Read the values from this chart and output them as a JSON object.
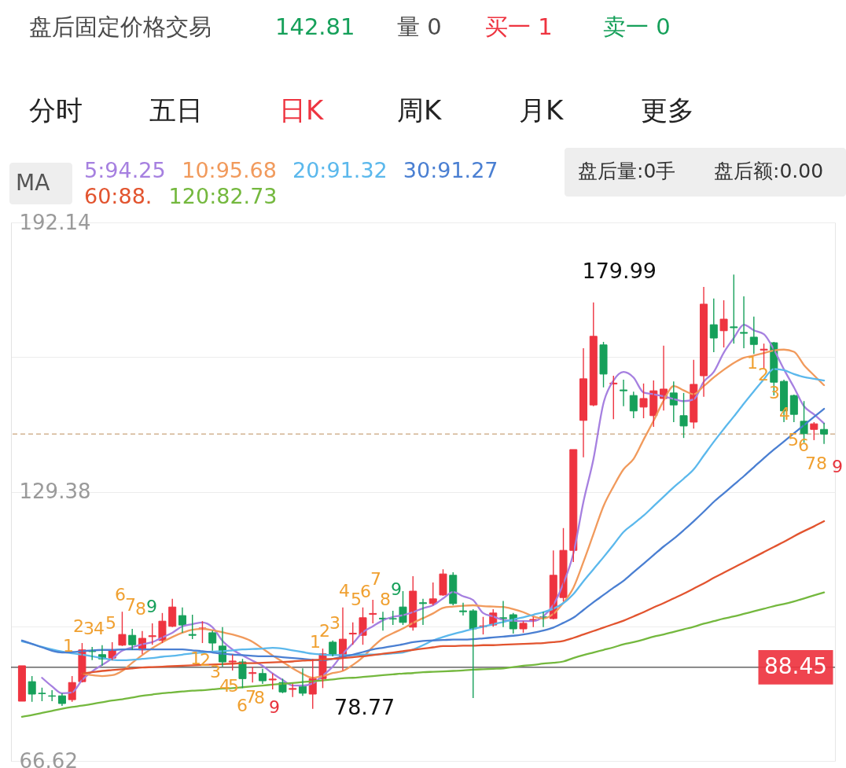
{
  "chart_data": {
    "type": "candlestick",
    "annotations": [
      "盘后固定价格交易",
      "142.81",
      "量 0",
      "买一 1",
      "卖一 0",
      "分时",
      "五日",
      "日K",
      "周K",
      "月K",
      "更多",
      "MA",
      "盘后量:0手",
      "盘后额:0.00",
      "179.99",
      "78.77",
      "1",
      "2",
      "3",
      "4",
      "5",
      "6",
      "7",
      "8",
      "9",
      "1",
      "2",
      "3",
      "4",
      "5",
      "6",
      "7",
      "8",
      "9",
      "1",
      "2",
      "3",
      "4",
      "5",
      "6",
      "7",
      "8",
      "9",
      "1",
      "2",
      "3",
      "4",
      "5",
      "6",
      "7",
      "8",
      "9"
    ],
    "categories": [
      null,
      null,
      null,
      null,
      null,
      null,
      null,
      null,
      null,
      null,
      null,
      null,
      null,
      null,
      null,
      null,
      null,
      null,
      null,
      null,
      null,
      null,
      null,
      null,
      null,
      null,
      null,
      null,
      null,
      null,
      null,
      null,
      null,
      null,
      null,
      null,
      null,
      null,
      null,
      null,
      null,
      null,
      null,
      null,
      null,
      null,
      null,
      null,
      null,
      null,
      null,
      null,
      null,
      null,
      null,
      null,
      null,
      null,
      null,
      null,
      null,
      null,
      null,
      null,
      null,
      null,
      null,
      null,
      null,
      null,
      null,
      null,
      null,
      null,
      null,
      null,
      null,
      null,
      null,
      null,
      null
    ],
    "ohlc": [
      [
        80.55,
        88.8,
        80.55,
        88.8
      ],
      [
        85.1,
        86.4,
        80.4,
        82.2
      ],
      [
        82.4,
        83.7,
        80.55,
        82.3
      ],
      [
        81.8,
        83.1,
        80.55,
        81.7
      ],
      [
        81.8,
        82.4,
        79.45,
        80.0
      ],
      [
        80.9,
        86.4,
        80.4,
        84.9
      ],
      [
        85.1,
        94.1,
        84.9,
        92.5
      ],
      [
        92.3,
        93.2,
        90.1,
        92.1
      ],
      [
        91.4,
        93.6,
        88.8,
        90.4
      ],
      [
        90.6,
        94.3,
        90.1,
        92.5
      ],
      [
        93.6,
        101.4,
        93.4,
        96.1
      ],
      [
        95.9,
        97.4,
        92.5,
        93.7
      ],
      [
        92.5,
        96.9,
        91.5,
        95.2
      ],
      [
        95.6,
        98.7,
        93.7,
        95.8
      ],
      [
        94.7,
        101.1,
        94.1,
        99.2
      ],
      [
        98.0,
        104.4,
        97.8,
        102.5
      ],
      [
        100.5,
        102.4,
        96.5,
        98.3
      ],
      [
        96.1,
        100.7,
        95.0,
        95.9
      ],
      [
        97.4,
        99.2,
        94.1,
        97.6
      ],
      [
        96.5,
        97.0,
        92.3,
        94.1
      ],
      [
        93.4,
        97.8,
        88.6,
        89.7
      ],
      [
        89.7,
        91.4,
        87.7,
        89.9
      ],
      [
        89.7,
        90.4,
        83.6,
        85.8
      ],
      [
        87.0,
        88.6,
        84.9,
        87.2
      ],
      [
        87.0,
        88.1,
        84.6,
        85.3
      ],
      [
        85.5,
        87.0,
        83.3,
        85.7
      ],
      [
        84.9,
        85.8,
        82.4,
        82.7
      ],
      [
        83.3,
        84.6,
        81.5,
        83.5
      ],
      [
        84.0,
        88.2,
        81.8,
        82.4
      ],
      [
        82.2,
        90.4,
        78.77,
        85.8
      ],
      [
        85.8,
        92.8,
        83.6,
        91.6
      ],
      [
        94.3,
        94.7,
        91.0,
        91.4
      ],
      [
        91.0,
        102.4,
        87.7,
        95.0
      ],
      [
        96.2,
        98.9,
        93.7,
        96.4
      ],
      [
        95.9,
        102.4,
        93.7,
        100.0
      ],
      [
        100.8,
        104.2,
        98.7,
        101.0
      ],
      [
        99.9,
        101.4,
        97.0,
        99.7
      ],
      [
        99.8,
        101.6,
        98.3,
        99.7
      ],
      [
        102.5,
        106.2,
        98.3,
        98.9
      ],
      [
        97.8,
        109.7,
        97.0,
        106.2
      ],
      [
        103.5,
        104.4,
        98.3,
        103.3
      ],
      [
        103.3,
        108.2,
        102.9,
        104.4
      ],
      [
        105.3,
        111.3,
        105.1,
        110.2
      ],
      [
        109.9,
        110.6,
        102.9,
        103.3
      ],
      [
        101.6,
        103.5,
        100.5,
        101.4
      ],
      [
        101.6,
        102.0,
        81.3,
        97.4
      ],
      [
        97.9,
        100.2,
        96.1,
        98.1
      ],
      [
        98.3,
        102.0,
        97.9,
        101.1
      ],
      [
        100.0,
        103.9,
        97.8,
        99.8
      ],
      [
        100.7,
        101.1,
        96.3,
        97.4
      ],
      [
        97.4,
        99.2,
        96.5,
        98.7
      ],
      [
        99.3,
        100.2,
        97.8,
        99.6
      ],
      [
        100.2,
        101.4,
        97.8,
        100.0
      ],
      [
        99.8,
        115.7,
        99.6,
        109.9
      ],
      [
        104.7,
        120.9,
        103.8,
        115.7
      ],
      [
        115.7,
        139.2,
        113.0,
        139.2
      ],
      [
        146.0,
        162.8,
        137.4,
        155.7
      ],
      [
        149.6,
        173.5,
        149.3,
        165.6
      ],
      [
        163.6,
        164.3,
        153.7,
        156.8
      ],
      [
        154.5,
        156.4,
        146.3,
        154.7
      ],
      [
        153.1,
        155.5,
        149.3,
        152.9
      ],
      [
        151.8,
        152.7,
        146.5,
        148.2
      ],
      [
        149.1,
        154.6,
        146.5,
        151.1
      ],
      [
        147.1,
        155.3,
        144.5,
        152.9
      ],
      [
        151.1,
        163.4,
        148.3,
        153.3
      ],
      [
        152.4,
        155.1,
        145.6,
        149.6
      ],
      [
        147.1,
        152.4,
        141.9,
        144.7
      ],
      [
        145.6,
        160.1,
        144.1,
        154.4
      ],
      [
        156.4,
        177.1,
        151.5,
        173.1
      ],
      [
        168.3,
        174.4,
        161.9,
        165.2
      ],
      [
        166.9,
        174.0,
        163.0,
        169.6
      ],
      [
        167.8,
        179.99,
        163.9,
        167.6
      ],
      [
        166.5,
        174.9,
        162.8,
        166.3
      ],
      [
        165.4,
        170.2,
        161.5,
        163.7
      ],
      [
        162.4,
        163.9,
        157.9,
        162.6
      ],
      [
        164.1,
        164.3,
        151.8,
        154.9
      ],
      [
        155.1,
        155.5,
        145.6,
        148.2
      ],
      [
        151.8,
        152.0,
        145.6,
        147.4
      ],
      [
        145.8,
        150.5,
        140.8,
        142.9
      ],
      [
        143.9,
        145.6,
        141.4,
        145.2
      ],
      [
        143.9,
        145.4,
        140.5,
        142.81
      ]
    ],
    "series": [
      {
        "name": "5:94.25",
        "type": "line",
        "color": "#a680e0",
        "values": [
          null,
          null,
          86.0,
          84.0,
          82.4,
          82.6,
          85.5,
          87.5,
          89.0,
          90.5,
          92.3,
          93.1,
          93.8,
          94.3,
          95.4,
          96.5,
          98.0,
          98.5,
          98.9,
          97.8,
          94.6,
          92.6,
          91.2,
          90.0,
          88.8,
          87.0,
          85.5,
          84.2,
          84.2,
          84.7,
          86.5,
          88.6,
          91.6,
          94.0,
          96.6,
          98.0,
          99.4,
          100.2,
          100.6,
          101.3,
          102.2,
          102.9,
          104.5,
          106.0,
          105.0,
          104.1,
          101.1,
          100.3,
          99.5,
          99.3,
          99.2,
          99.2,
          100.3,
          103.0,
          108.0,
          115.0,
          127.0,
          137.0,
          150.0,
          155.3,
          157.3,
          156.0,
          152.5,
          152.1,
          151.6,
          151.0,
          150.5,
          150.9,
          155.0,
          157.3,
          161.8,
          165.2,
          168.3,
          167.0,
          166.1,
          162.5,
          157.9,
          153.7,
          149.3,
          147.4,
          145.3
        ]
      },
      {
        "name": "10:95.68",
        "type": "line",
        "color": "#f19a5c",
        "values": [
          null,
          null,
          null,
          null,
          null,
          null,
          87.0,
          86.6,
          86.4,
          86.6,
          87.6,
          89.5,
          91.3,
          92.9,
          94.3,
          95.5,
          96.5,
          97.2,
          97.4,
          97.1,
          96.6,
          96.1,
          95.4,
          94.4,
          92.8,
          91.2,
          89.7,
          88.2,
          86.9,
          86.0,
          86.4,
          87.1,
          87.6,
          89.0,
          90.8,
          93.2,
          95.2,
          96.4,
          97.5,
          98.8,
          99.9,
          101.0,
          102.3,
          102.6,
          102.8,
          102.9,
          102.7,
          102.6,
          102.5,
          102.0,
          101.3,
          100.3,
          99.8,
          100.9,
          103.5,
          107.0,
          113.0,
          119.5,
          126.0,
          130.6,
          134.6,
          137.0,
          141.5,
          145.9,
          150.6,
          154.0,
          153.0,
          152.1,
          154.0,
          156.0,
          157.8,
          159.4,
          160.6,
          161.1,
          161.7,
          162.3,
          162.5,
          162.0,
          158.9,
          156.5,
          154.2
        ]
      },
      {
        "name": "20:91.32",
        "type": "line",
        "color": "#5bb8ec",
        "values": [
          94.5,
          93.9,
          93.2,
          92.6,
          92.1,
          91.7,
          91.4,
          91.0,
          90.6,
          90.2,
          90.1,
          90.2,
          90.4,
          90.6,
          90.9,
          91.1,
          91.4,
          91.7,
          91.9,
          92.1,
          92.2,
          92.4,
          92.6,
          92.7,
          92.8,
          93.0,
          92.8,
          92.4,
          92.0,
          91.6,
          91.4,
          91.3,
          91.3,
          91.3,
          91.4,
          91.4,
          91.5,
          91.7,
          91.9,
          92.6,
          93.6,
          94.7,
          95.5,
          96.2,
          96.8,
          97.4,
          97.9,
          98.5,
          99.0,
          99.6,
          100.1,
          100.7,
          101.3,
          102.1,
          103.4,
          105.5,
          108.5,
          111.3,
          114.1,
          117.0,
          120.0,
          121.9,
          123.8,
          126.0,
          128.2,
          130.4,
          132.4,
          134.6,
          137.8,
          141.0,
          144.0,
          146.9,
          149.9,
          152.8,
          155.6,
          158.0,
          157.7,
          156.8,
          156.1,
          155.7,
          155.3
        ]
      },
      {
        "name": "30:91.27",
        "type": "line",
        "color": "#4a7fd2",
        "values": [
          94.7,
          93.9,
          93.1,
          92.3,
          91.9,
          92.0,
          92.2,
          92.4,
          92.5,
          92.5,
          92.6,
          92.6,
          92.6,
          92.6,
          92.6,
          92.6,
          92.6,
          92.4,
          92.2,
          91.9,
          91.6,
          91.4,
          91.3,
          91.1,
          91.0,
          91.0,
          90.8,
          90.6,
          90.4,
          90.2,
          90.1,
          90.4,
          90.9,
          91.4,
          92.0,
          92.6,
          93.0,
          93.4,
          93.8,
          94.3,
          94.6,
          94.7,
          94.8,
          94.9,
          94.9,
          95.0,
          95.2,
          95.4,
          95.6,
          95.8,
          96.1,
          96.5,
          97.0,
          97.7,
          98.8,
          100.0,
          101.8,
          103.6,
          105.3,
          107.0,
          108.6,
          110.6,
          112.6,
          114.6,
          116.6,
          118.4,
          120.4,
          122.5,
          124.7,
          127.0,
          129.0,
          131.0,
          133.0,
          135.1,
          137.2,
          139.2,
          141.1,
          143.0,
          144.9,
          146.8,
          148.7
        ]
      },
      {
        "name": "60:88.",
        "type": "line",
        "color": "#e2542f",
        "values": [
          null,
          null,
          null,
          null,
          null,
          null,
          87.0,
          87.3,
          87.6,
          87.8,
          88.0,
          88.2,
          88.4,
          88.5,
          88.6,
          88.7,
          88.8,
          88.9,
          89.0,
          89.1,
          89.2,
          89.3,
          89.4,
          89.4,
          89.5,
          89.6,
          89.7,
          89.8,
          90.0,
          90.1,
          90.3,
          90.4,
          90.6,
          90.8,
          91.0,
          91.3,
          91.6,
          91.9,
          92.2,
          92.5,
          92.8,
          93.1,
          93.4,
          93.4,
          93.5,
          93.5,
          93.6,
          93.6,
          93.7,
          93.8,
          93.9,
          94.0,
          94.1,
          94.3,
          94.6,
          95.3,
          96.1,
          96.9,
          97.7,
          98.5,
          99.3,
          100.3,
          101.3,
          102.4,
          103.4,
          104.5,
          105.6,
          106.8,
          108.0,
          109.3,
          110.5,
          111.7,
          112.9,
          114.1,
          115.3,
          116.5,
          117.7,
          119.0,
          120.2,
          121.3,
          122.5
        ]
      },
      {
        "name": "120:82.73",
        "type": "line",
        "color": "#74b83e",
        "values": [
          76.9,
          77.3,
          77.8,
          78.3,
          78.8,
          79.2,
          79.5,
          79.9,
          80.3,
          80.7,
          81.0,
          81.4,
          81.8,
          82.1,
          82.4,
          82.6,
          82.8,
          83.0,
          83.1,
          83.3,
          83.5,
          83.6,
          83.8,
          84.0,
          84.2,
          84.4,
          84.6,
          84.8,
          85.0,
          85.2,
          85.4,
          85.6,
          85.9,
          86.0,
          86.2,
          86.4,
          86.6,
          86.8,
          87.0,
          87.1,
          87.3,
          87.4,
          87.5,
          87.6,
          87.7,
          87.9,
          88.0,
          88.1,
          88.2,
          88.5,
          88.8,
          89.0,
          89.3,
          89.5,
          89.8,
          90.6,
          91.3,
          91.9,
          92.5,
          93.1,
          93.8,
          94.3,
          94.9,
          95.6,
          96.1,
          96.7,
          97.3,
          97.9,
          98.6,
          99.2,
          99.8,
          100.3,
          100.9,
          101.5,
          102.1,
          102.7,
          103.2,
          103.8,
          104.5,
          105.2,
          105.9
        ]
      }
    ],
    "ylim": [
      66.62,
      192.14
    ],
    "yticks": [
      192.14,
      {
        "value": 160.76,
        "label": null
      },
      129.38,
      {
        "value": 98.0,
        "label": null
      },
      66.62
    ],
    "grid": true,
    "legend": "top",
    "tick_labels": "y",
    "ref_lines": [
      {
        "axis": "y",
        "value": 88.45,
        "label": "88.45",
        "color": "#444444"
      },
      {
        "axis": "y",
        "value": 142.81,
        "color": "#c9a47c",
        "line_style": "dashed"
      }
    ]
  }
}
